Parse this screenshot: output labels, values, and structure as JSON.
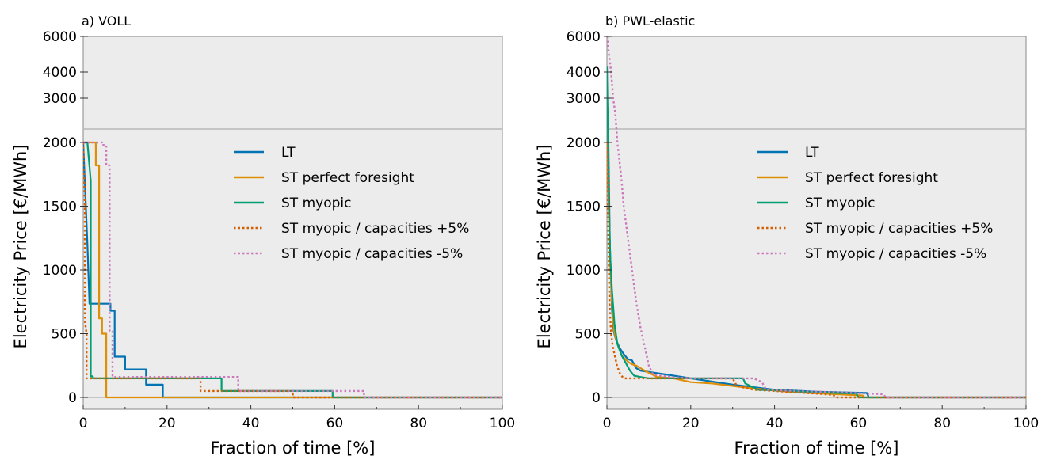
{
  "chart_data": [
    {
      "type": "line",
      "title": "a) VOLL",
      "xlabel": "Fraction of time [%]",
      "ylabel": "Electricity Price [€/MWh]",
      "xlim": [
        0,
        100
      ],
      "xticks": [
        "0",
        "20",
        "40",
        "60",
        "80",
        "100"
      ],
      "yticks_lower": [
        "0",
        "500",
        "1000",
        "1500",
        "2000"
      ],
      "yticks_upper": [
        "3000",
        "4000",
        "6000"
      ],
      "axis_break": "y-axis split: linear 0–2000 below, compressed upper range 2000–6000 above",
      "grid": false,
      "legend_position": "center-right",
      "series": [
        {
          "name": "LT",
          "color": "#0173b2",
          "dash": "solid",
          "x": [
            0,
            1,
            1.5,
            6.5,
            6.5,
            7.5,
            7.5,
            10,
            10,
            15,
            15,
            19,
            19,
            100
          ],
          "y": [
            2000,
            1200,
            735,
            735,
            680,
            680,
            320,
            320,
            220,
            220,
            100,
            100,
            0,
            0
          ]
        },
        {
          "name": "ST perfect foresight",
          "color": "#de8f05",
          "dash": "solid",
          "x": [
            0,
            3,
            3,
            3.8,
            3.8,
            4.5,
            4.5,
            5.5,
            5.5,
            100
          ],
          "y": [
            2000,
            2000,
            1820,
            1820,
            620,
            620,
            500,
            500,
            0,
            0
          ]
        },
        {
          "name": "ST myopic",
          "color": "#029e73",
          "dash": "solid",
          "x": [
            0,
            1,
            1.8,
            1.8,
            2.3,
            2.3,
            33,
            33,
            59.5,
            59.5,
            100
          ],
          "y": [
            2000,
            2000,
            1700,
            165,
            165,
            150,
            150,
            50,
            50,
            0,
            0
          ]
        },
        {
          "name": "ST myopic / capacities +5%",
          "color": "#d55e00",
          "dash": "dotted",
          "x": [
            0,
            0.4,
            0.4,
            0.8,
            0.8,
            28,
            28,
            50,
            50,
            100
          ],
          "y": [
            2000,
            1500,
            600,
            500,
            150,
            150,
            50,
            50,
            0,
            0
          ]
        },
        {
          "name": "ST myopic / capacities -5%",
          "color": "#cc78bc",
          "dash": "dotted",
          "x": [
            0,
            4.5,
            4.5,
            5.5,
            5.5,
            6.3,
            6.3,
            7,
            7,
            37,
            37,
            67,
            67,
            100
          ],
          "y": [
            2000,
            2000,
            1980,
            1980,
            1820,
            1820,
            520,
            520,
            160,
            160,
            50,
            50,
            0,
            0
          ]
        }
      ]
    },
    {
      "type": "line",
      "title": "b) PWL-elastic",
      "xlabel": "Fraction of time [%]",
      "ylabel": "Electricity Price [€/MWh]",
      "xlim": [
        0,
        100
      ],
      "xticks": [
        "0",
        "20",
        "40",
        "60",
        "80",
        "100"
      ],
      "yticks_lower": [
        "0",
        "500",
        "1000",
        "1500",
        "2000"
      ],
      "yticks_upper": [
        "3000",
        "4000",
        "6000"
      ],
      "axis_break": "y-axis split: linear 0–2000 below, compressed upper range 2000–6000 above",
      "grid": false,
      "legend_position": "center-right",
      "series": [
        {
          "name": "LT",
          "color": "#0173b2",
          "dash": "solid",
          "x": [
            0,
            0.3,
            0.7,
            1.2,
            1.6,
            2.2,
            3,
            4,
            5,
            6,
            7,
            8,
            10,
            14,
            18,
            22,
            30,
            40,
            50,
            62,
            62.5,
            100
          ],
          "y": [
            3000,
            2100,
            1200,
            700,
            520,
            450,
            390,
            340,
            300,
            290,
            230,
            210,
            200,
            180,
            160,
            140,
            100,
            60,
            45,
            35,
            0,
            0
          ]
        },
        {
          "name": "ST perfect foresight",
          "color": "#de8f05",
          "dash": "solid",
          "x": [
            0,
            0.3,
            0.7,
            1.2,
            1.7,
            2.5,
            3.5,
            5,
            6,
            7,
            9,
            12,
            16,
            20,
            25,
            30,
            35,
            45,
            55,
            61,
            61.5,
            100
          ],
          "y": [
            2000,
            1650,
            1150,
            750,
            520,
            420,
            330,
            280,
            260,
            250,
            210,
            160,
            150,
            120,
            110,
            90,
            70,
            40,
            25,
            15,
            0,
            0
          ]
        },
        {
          "name": "ST myopic",
          "color": "#029e73",
          "dash": "solid",
          "x": [
            0,
            0.2,
            0.5,
            0.8,
            1.2,
            1.8,
            2.5,
            3.5,
            4.5,
            5.5,
            6.5,
            8,
            10,
            15,
            20,
            30,
            32.5,
            33,
            36,
            40,
            50,
            59.5,
            60,
            100
          ],
          "y": [
            4300,
            2200,
            1500,
            1100,
            850,
            580,
            420,
            330,
            270,
            210,
            170,
            160,
            150,
            150,
            150,
            150,
            150,
            110,
            60,
            55,
            40,
            30,
            0,
            0
          ]
        },
        {
          "name": "ST myopic / capacities +5%",
          "color": "#d55e00",
          "dash": "dotted",
          "x": [
            0,
            0.3,
            0.6,
            1,
            1.4,
            1.8,
            2.4,
            3.2,
            4,
            5,
            6,
            8,
            10,
            15,
            20,
            25,
            30,
            31,
            35,
            40,
            45,
            50,
            54,
            54.5,
            100
          ],
          "y": [
            2000,
            1350,
            750,
            500,
            400,
            340,
            250,
            180,
            150,
            150,
            150,
            150,
            150,
            150,
            150,
            150,
            150,
            90,
            60,
            50,
            40,
            30,
            20,
            0,
            0
          ]
        },
        {
          "name": "ST myopic / capacities -5%",
          "color": "#cc78bc",
          "dash": "dotted",
          "x": [
            0,
            0.5,
            1,
            1.5,
            2,
            2.5,
            3,
            3.5,
            4,
            5,
            6,
            7,
            8,
            9,
            10,
            11,
            15,
            20,
            25,
            30,
            35,
            37,
            38,
            45,
            55,
            66,
            66.5,
            100
          ],
          "y": [
            6000,
            5000,
            4000,
            3000,
            2500,
            2000,
            1850,
            1700,
            1500,
            1250,
            1000,
            750,
            550,
            400,
            250,
            180,
            160,
            150,
            150,
            150,
            150,
            120,
            60,
            50,
            40,
            25,
            0,
            0
          ]
        }
      ]
    }
  ]
}
